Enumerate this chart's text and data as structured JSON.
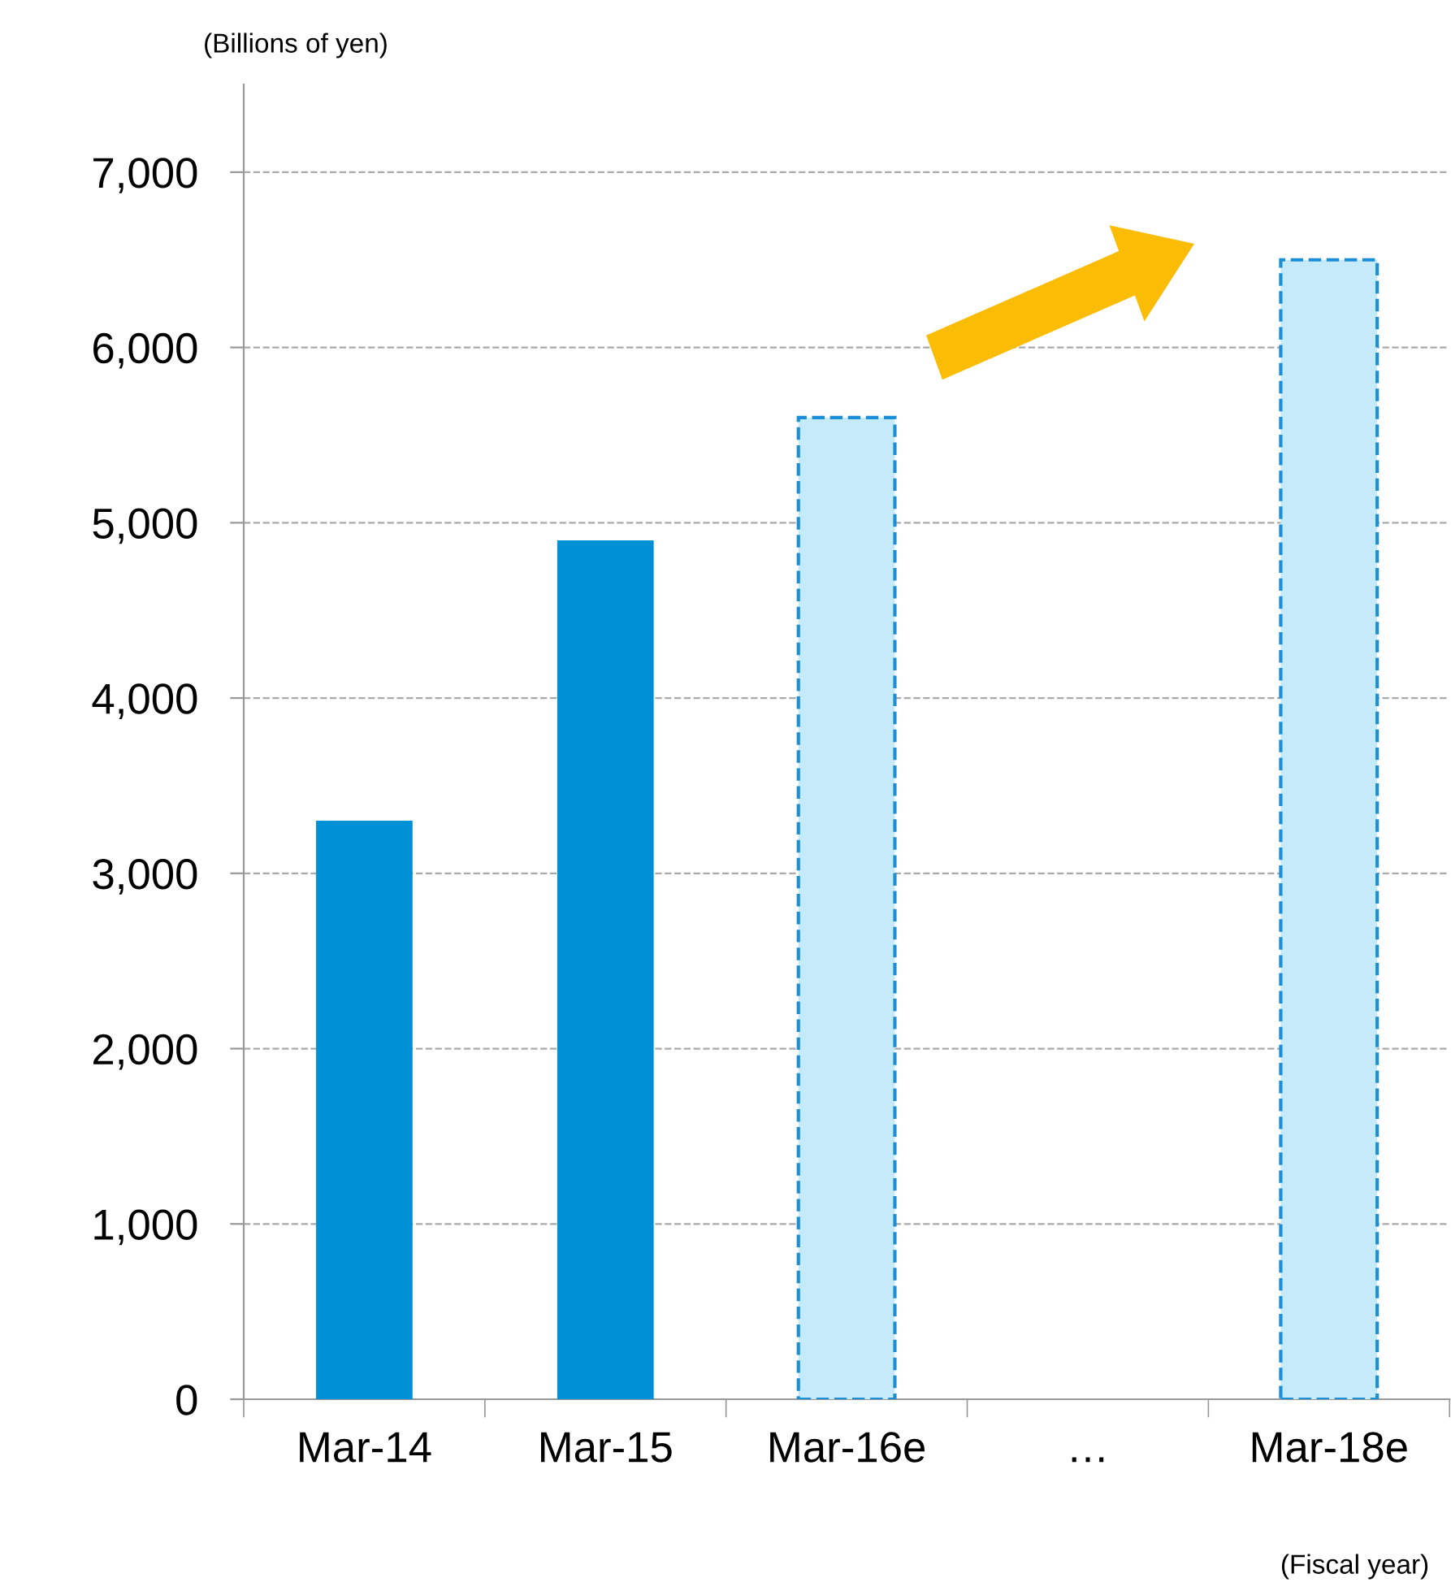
{
  "chart_data": {
    "type": "bar",
    "categories": [
      "Mar-14",
      "Mar-15",
      "Mar-16e",
      "…",
      "Mar-18e"
    ],
    "series": [
      {
        "color": "#0090d6",
        "line_style": "solid",
        "values": [
          3300,
          4900,
          null,
          null,
          null
        ]
      },
      {
        "color": "#c5eaf9",
        "line_style": "dashed",
        "values": [
          null,
          null,
          5600,
          null,
          6500
        ]
      }
    ],
    "ylabel": "(Billions of yen)",
    "xlabel": "(Fiscal year)",
    "ylim": [
      0,
      7500
    ],
    "yticks": [
      {
        "value": 0,
        "label": "0"
      },
      {
        "value": 1000,
        "label": "1,000"
      },
      {
        "value": 2000,
        "label": "2,000"
      },
      {
        "value": 3000,
        "label": "3,000"
      },
      {
        "value": 4000,
        "label": "4,000"
      },
      {
        "value": 5000,
        "label": "5,000"
      },
      {
        "value": 6000,
        "label": "6,000"
      },
      {
        "value": 7000,
        "label": "7,000"
      }
    ],
    "grid": "y",
    "legend": false
  }
}
